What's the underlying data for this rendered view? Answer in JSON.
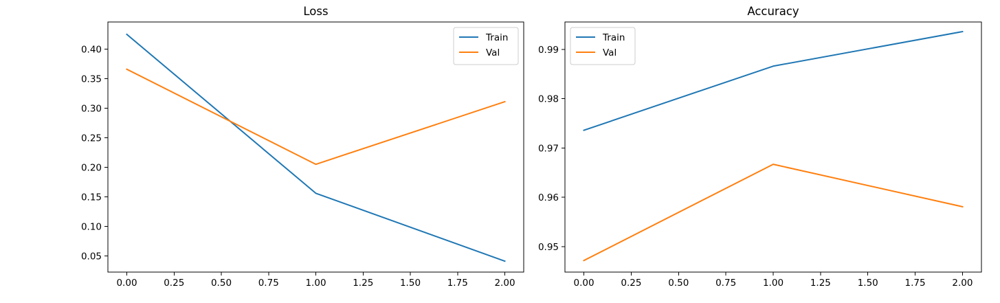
{
  "chart_data": [
    {
      "type": "line",
      "title": "Loss",
      "xlabel": "",
      "ylabel": "",
      "x": [
        0,
        1,
        2
      ],
      "xlim": [
        -0.1,
        2.1
      ],
      "ylim": [
        0.0225,
        0.446
      ],
      "xticks": [
        0.0,
        0.25,
        0.5,
        0.75,
        1.0,
        1.25,
        1.5,
        1.75,
        2.0
      ],
      "xtick_labels": [
        "0.00",
        "0.25",
        "0.50",
        "0.75",
        "1.00",
        "1.25",
        "1.50",
        "1.75",
        "2.00"
      ],
      "yticks": [
        0.05,
        0.1,
        0.15,
        0.2,
        0.25,
        0.3,
        0.35,
        0.4
      ],
      "ytick_labels": [
        "0.05",
        "0.10",
        "0.15",
        "0.20",
        "0.25",
        "0.30",
        "0.35",
        "0.40"
      ],
      "grid": false,
      "legend": "top-right",
      "series": [
        {
          "name": "Train",
          "values": [
            0.425,
            0.156,
            0.041
          ],
          "color": "#1f77b4"
        },
        {
          "name": "Val",
          "values": [
            0.366,
            0.205,
            0.311
          ],
          "color": "#ff7f0e"
        }
      ]
    },
    {
      "type": "line",
      "title": "Accuracy",
      "xlabel": "",
      "ylabel": "",
      "x": [
        0,
        1,
        2
      ],
      "xlim": [
        -0.1,
        2.1
      ],
      "ylim": [
        0.94485,
        0.99555
      ],
      "xticks": [
        0.0,
        0.25,
        0.5,
        0.75,
        1.0,
        1.25,
        1.5,
        1.75,
        2.0
      ],
      "xtick_labels": [
        "0.00",
        "0.25",
        "0.50",
        "0.75",
        "1.00",
        "1.25",
        "1.50",
        "1.75",
        "2.00"
      ],
      "yticks": [
        0.95,
        0.96,
        0.97,
        0.98,
        0.99
      ],
      "ytick_labels": [
        "0.95",
        "0.96",
        "0.97",
        "0.98",
        "0.99"
      ],
      "grid": false,
      "legend": "top-left",
      "series": [
        {
          "name": "Train",
          "values": [
            0.9736,
            0.9866,
            0.9936
          ],
          "color": "#1f77b4"
        },
        {
          "name": "Val",
          "values": [
            0.9472,
            0.9667,
            0.9581
          ],
          "color": "#ff7f0e"
        }
      ]
    }
  ]
}
